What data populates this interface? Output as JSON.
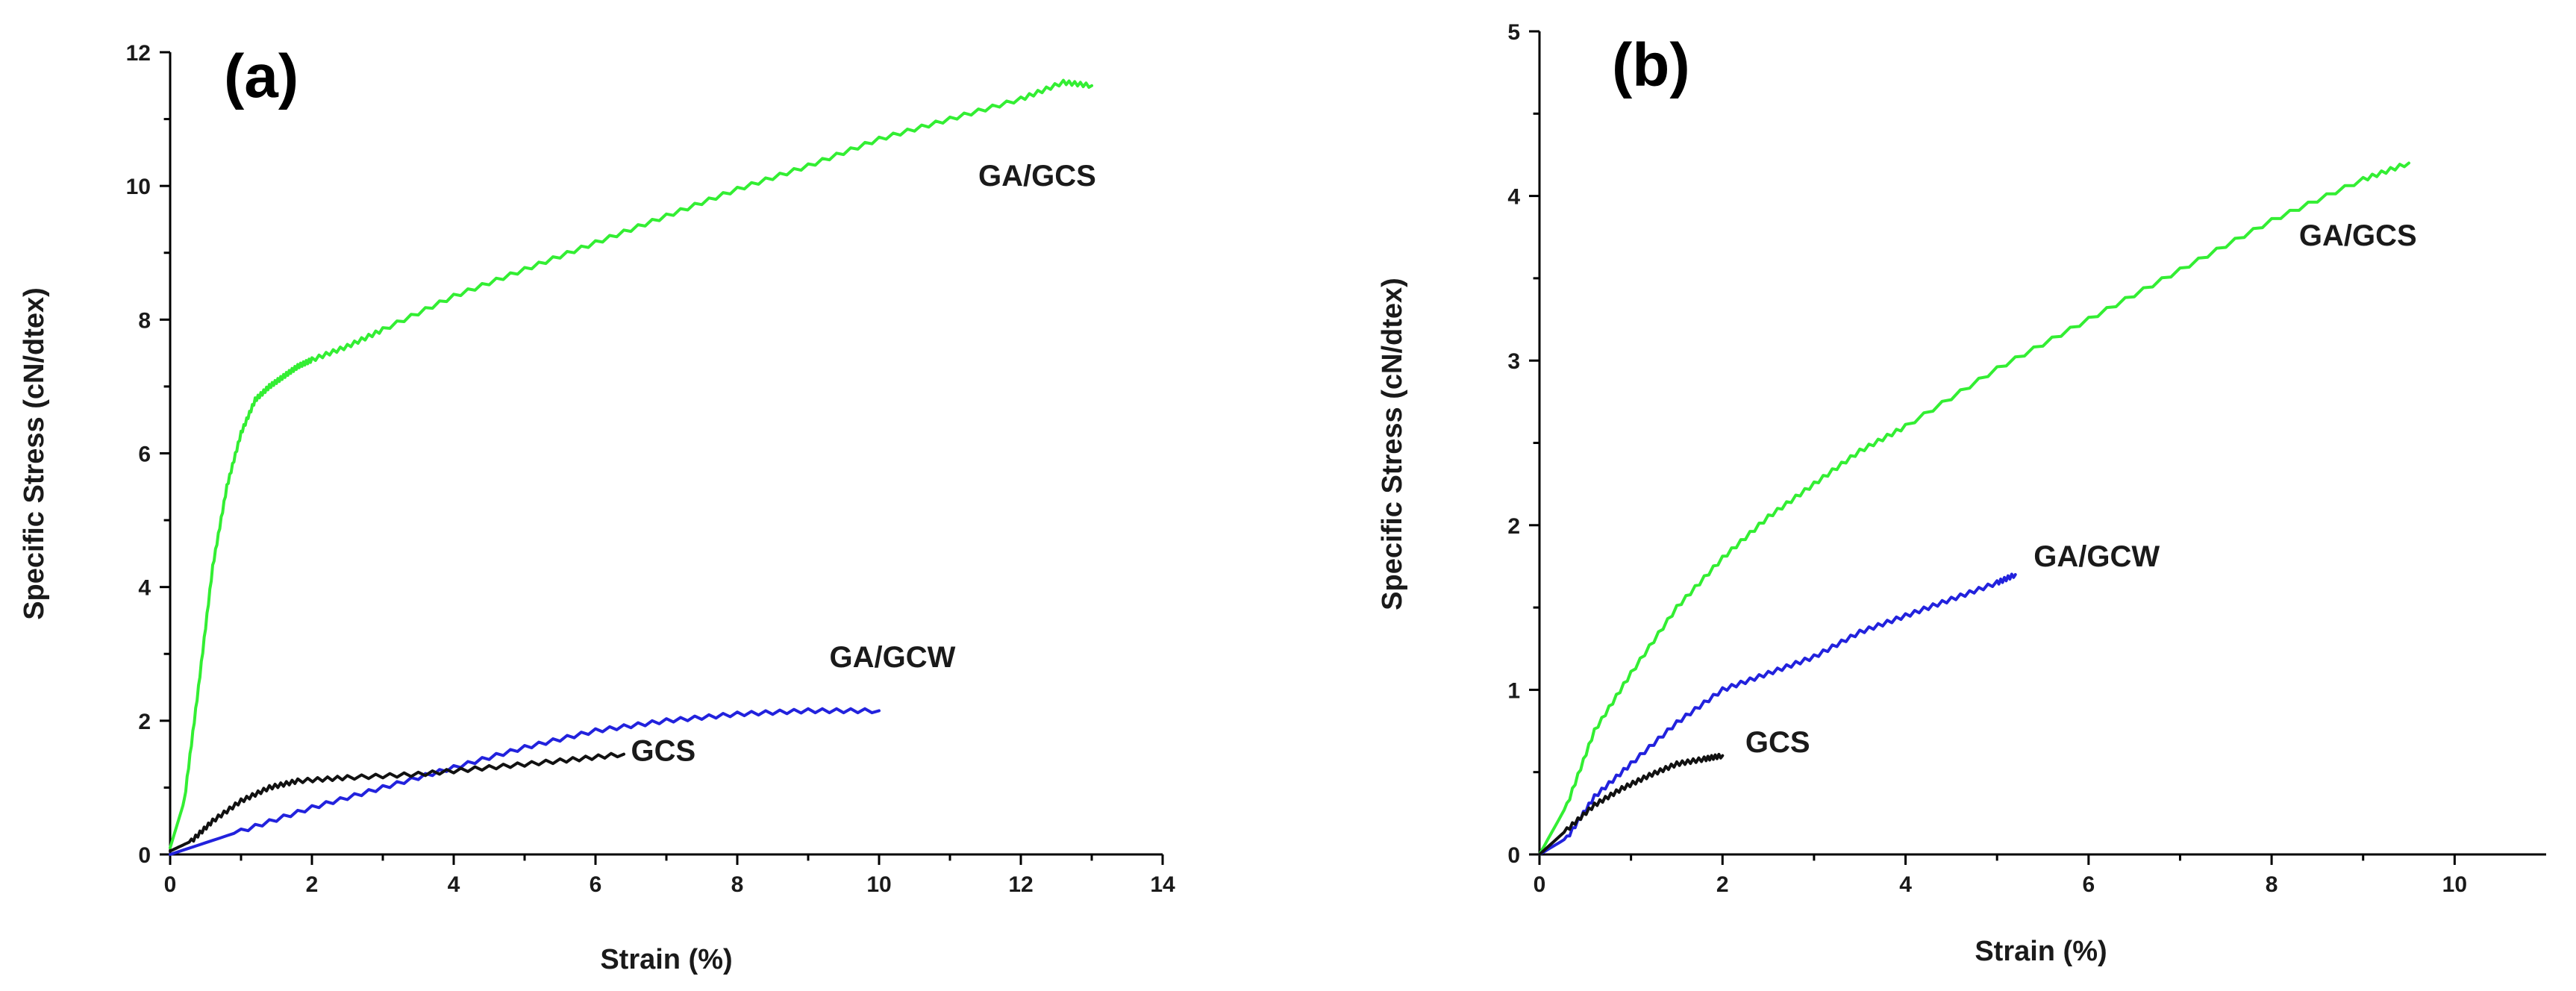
{
  "chart_data": [
    {
      "type": "line",
      "panel_label": "(a)",
      "xlabel": "Strain (%)",
      "ylabel": "Specific Stress (cN/dtex)",
      "xlim": [
        0,
        14
      ],
      "ylim": [
        0,
        12
      ],
      "xticks": [
        0,
        2,
        4,
        6,
        8,
        10,
        12,
        14
      ],
      "yticks": [
        0,
        2,
        4,
        6,
        8,
        10,
        12
      ],
      "grid": false,
      "series": [
        {
          "name": "GA/GCS",
          "label": "GA/GCS",
          "color": "#33ee33",
          "label_at": [
            11.4,
            10.0
          ],
          "x": [
            0,
            0.2,
            0.4,
            0.6,
            0.8,
            1.0,
            1.2,
            1.4,
            1.6,
            1.8,
            2.0,
            2.5,
            3,
            4,
            5,
            6,
            7,
            8,
            9,
            10,
            11,
            12,
            12.6,
            13.0
          ],
          "y": [
            0.1,
            0.8,
            2.5,
            4.3,
            5.5,
            6.3,
            6.8,
            7.0,
            7.15,
            7.3,
            7.4,
            7.6,
            7.85,
            8.35,
            8.75,
            9.15,
            9.55,
            9.95,
            10.3,
            10.7,
            11.0,
            11.3,
            11.55,
            11.5
          ]
        },
        {
          "name": "GA/GCW",
          "label": "GA/GCW",
          "color": "#2222dd",
          "label_at": [
            9.3,
            2.8
          ],
          "x": [
            0,
            1,
            2,
            3,
            4,
            5,
            6,
            7,
            8,
            9,
            10
          ],
          "y": [
            0,
            0.35,
            0.7,
            1.0,
            1.3,
            1.6,
            1.85,
            2.0,
            2.1,
            2.15,
            2.15
          ]
        },
        {
          "name": "GCS",
          "label": "GCS",
          "color": "#111111",
          "label_at": [
            6.5,
            1.4
          ],
          "x": [
            0,
            0.3,
            0.6,
            1.0,
            1.4,
            1.8,
            2.5,
            3.5,
            4.5,
            5.5,
            6.4
          ],
          "y": [
            0.05,
            0.2,
            0.5,
            0.8,
            1.0,
            1.1,
            1.15,
            1.2,
            1.3,
            1.4,
            1.5
          ]
        }
      ]
    },
    {
      "type": "line",
      "panel_label": "(b)",
      "xlabel": "Strain (%)",
      "ylabel": "Specific Stress (cN/dtex)",
      "xlim": [
        0,
        11
      ],
      "ylim": [
        0,
        5
      ],
      "xticks": [
        0,
        2,
        4,
        6,
        8,
        10
      ],
      "yticks": [
        0,
        1,
        2,
        3,
        4,
        5
      ],
      "grid": false,
      "series": [
        {
          "name": "GA/GCS",
          "label": "GA/GCS",
          "color": "#33ee33",
          "label_at": [
            8.3,
            3.7
          ],
          "x": [
            0,
            0.3,
            0.6,
            1.0,
            1.5,
            2.0,
            2.5,
            3.0,
            3.5,
            4.0,
            5.0,
            6.0,
            7.0,
            8.0,
            9.0,
            9.5
          ],
          "y": [
            0.0,
            0.3,
            0.75,
            1.1,
            1.5,
            1.8,
            2.05,
            2.25,
            2.45,
            2.6,
            2.95,
            3.25,
            3.55,
            3.85,
            4.1,
            4.2
          ]
        },
        {
          "name": "GA/GCW",
          "label": "GA/GCW",
          "color": "#2222dd",
          "label_at": [
            5.4,
            1.75
          ],
          "x": [
            0,
            0.3,
            0.6,
            1.0,
            1.5,
            2.0,
            2.5,
            3.0,
            3.5,
            4.0,
            4.5,
            5.0,
            5.2
          ],
          "y": [
            0.0,
            0.1,
            0.35,
            0.55,
            0.8,
            1.0,
            1.1,
            1.2,
            1.35,
            1.45,
            1.55,
            1.65,
            1.7
          ]
        },
        {
          "name": "GCS",
          "label": "GCS",
          "color": "#111111",
          "label_at": [
            2.25,
            0.62
          ],
          "x": [
            0,
            0.3,
            0.6,
            0.9,
            1.2,
            1.5,
            1.8,
            2.0
          ],
          "y": [
            0.0,
            0.15,
            0.3,
            0.4,
            0.48,
            0.55,
            0.58,
            0.6
          ]
        }
      ]
    }
  ]
}
